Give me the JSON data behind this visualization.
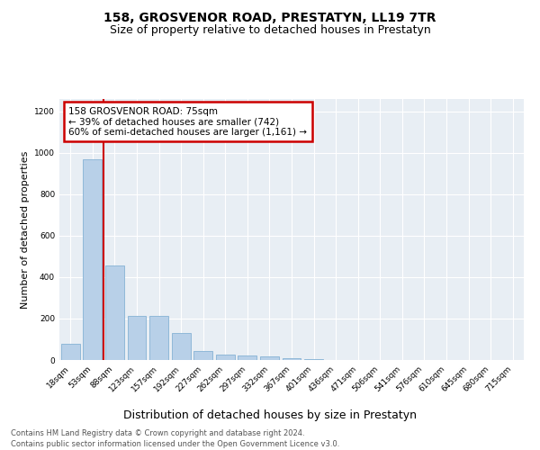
{
  "title": "158, GROSVENOR ROAD, PRESTATYN, LL19 7TR",
  "subtitle": "Size of property relative to detached houses in Prestatyn",
  "xlabel": "Distribution of detached houses by size in Prestatyn",
  "ylabel": "Number of detached properties",
  "footnote1": "Contains HM Land Registry data © Crown copyright and database right 2024.",
  "footnote2": "Contains public sector information licensed under the Open Government Licence v3.0.",
  "bins": [
    "18sqm",
    "53sqm",
    "88sqm",
    "123sqm",
    "157sqm",
    "192sqm",
    "227sqm",
    "262sqm",
    "297sqm",
    "332sqm",
    "367sqm",
    "401sqm",
    "436sqm",
    "471sqm",
    "506sqm",
    "541sqm",
    "576sqm",
    "610sqm",
    "645sqm",
    "680sqm",
    "715sqm"
  ],
  "values": [
    80,
    970,
    455,
    215,
    215,
    130,
    45,
    25,
    22,
    18,
    10,
    5,
    0,
    0,
    0,
    0,
    0,
    0,
    0,
    0,
    0
  ],
  "bar_color": "#b8d0e8",
  "bar_edge_color": "#90b8d8",
  "marker_color": "#cc0000",
  "annotation_title": "158 GROSVENOR ROAD: 75sqm",
  "annotation_line1": "← 39% of detached houses are smaller (742)",
  "annotation_line2": "60% of semi-detached houses are larger (1,161) →",
  "annotation_box_color": "#cc0000",
  "ylim": [
    0,
    1260
  ],
  "yticks": [
    0,
    200,
    400,
    600,
    800,
    1000,
    1200
  ],
  "bg_color": "#e8eef4",
  "title_fontsize": 10,
  "subtitle_fontsize": 9
}
